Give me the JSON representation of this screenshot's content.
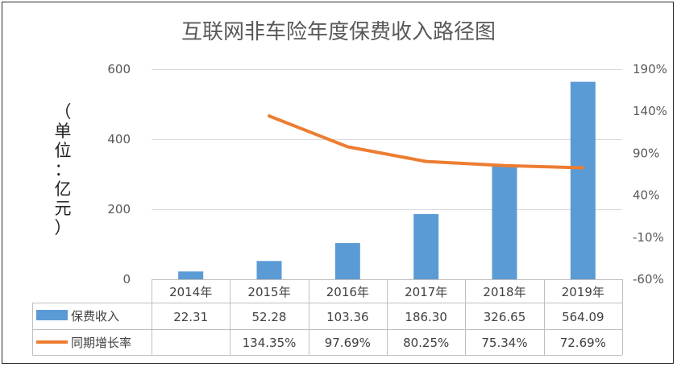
{
  "chart_data": {
    "type": "bar",
    "title": "互联网非车险年度保费收入路径图",
    "ylabel_chars": [
      "（",
      "单",
      "位",
      "：",
      "亿",
      "元",
      "）"
    ],
    "categories": [
      "2014年",
      "2015年",
      "2016年",
      "2017年",
      "2018年",
      "2019年"
    ],
    "ylim": [
      0,
      600
    ],
    "y_ticks": [
      "0",
      "200",
      "400",
      "600"
    ],
    "y2lim": [
      -60,
      190
    ],
    "y2_ticks": [
      "-60%",
      "-10%",
      "40%",
      "90%",
      "140%",
      "190%"
    ],
    "grid": true,
    "series": [
      {
        "name": "保费收入",
        "kind": "bar",
        "color": "#5b9bd5",
        "values": [
          22.31,
          52.28,
          103.36,
          186.3,
          326.65,
          564.09
        ],
        "labels": [
          "22.31",
          "52.28",
          "103.36",
          "186.30",
          "326.65",
          "564.09"
        ]
      },
      {
        "name": "同期增长率",
        "kind": "line",
        "axis": "right",
        "color": "#ed7d31",
        "values": [
          null,
          134.35,
          97.69,
          80.25,
          75.34,
          72.69
        ],
        "labels": [
          "",
          "134.35%",
          "97.69%",
          "80.25%",
          "75.34%",
          "72.69%"
        ]
      }
    ]
  }
}
